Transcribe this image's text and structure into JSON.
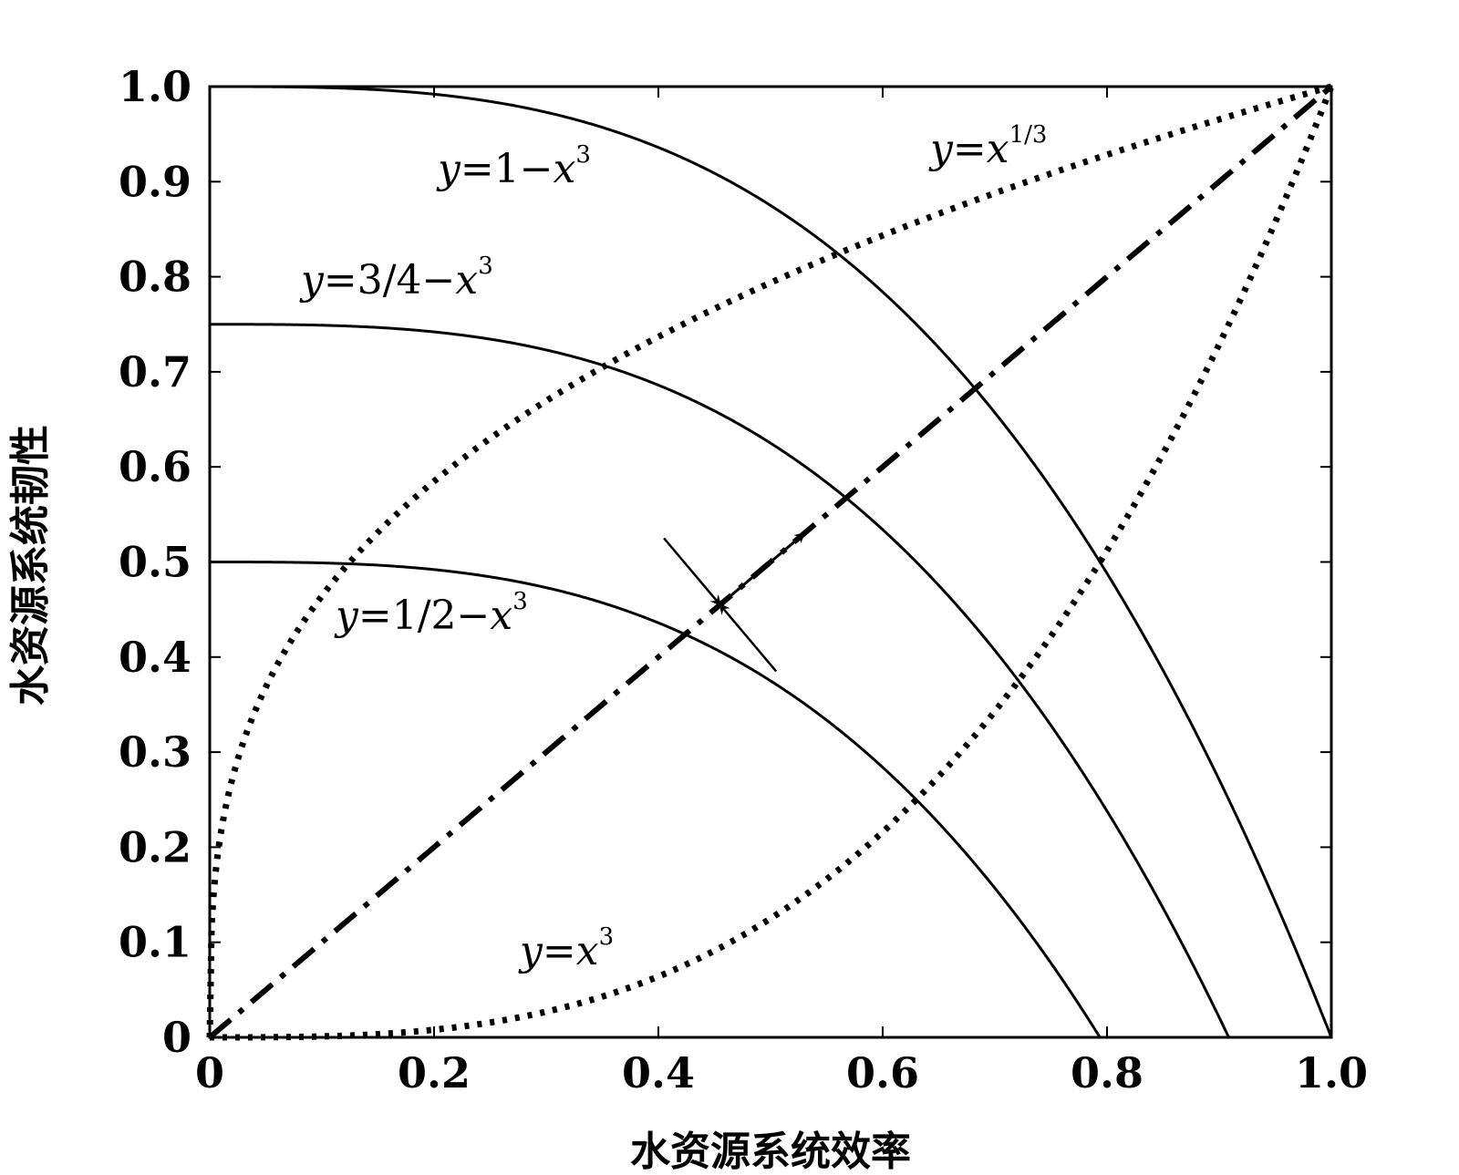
{
  "chart_data": {
    "type": "line",
    "xlabel": "水资源系统效率",
    "ylabel": "水资源系统韧性",
    "xlim": [
      0,
      1.0
    ],
    "ylim": [
      0,
      1.0
    ],
    "x_ticks": [
      "0",
      "0.2",
      "0.4",
      "0.6",
      "0.8",
      "1.0"
    ],
    "y_ticks": [
      "0",
      "0.1",
      "0.2",
      "0.3",
      "0.4",
      "0.5",
      "0.6",
      "0.7",
      "0.8",
      "0.9",
      "1.0"
    ],
    "grid": false,
    "series": [
      {
        "name": "y=1−x³",
        "formula": "1-x^3",
        "style": "solid",
        "color": "#000000",
        "label": {
          "prefix": "y",
          "middle": "=1−",
          "var": "x",
          "sup": "3"
        }
      },
      {
        "name": "y=3/4−x³",
        "formula": "3/4-x^3",
        "style": "solid",
        "color": "#000000",
        "label": {
          "prefix": "y",
          "middle": "=3/4−",
          "var": "x",
          "sup": "3"
        }
      },
      {
        "name": "y=1/2−x³",
        "formula": "1/2-x^3",
        "style": "solid",
        "color": "#000000",
        "label": {
          "prefix": "y",
          "middle": "=1/2−",
          "var": "x",
          "sup": "3"
        }
      },
      {
        "name": "y=x^1/3",
        "formula": "x^(1/3)",
        "style": "dotted",
        "color": "#000000",
        "label": {
          "prefix": "y",
          "middle": "=",
          "var": "x",
          "sup": "1/3"
        }
      },
      {
        "name": "y=x³",
        "formula": "x^3",
        "style": "dotted",
        "color": "#000000",
        "label": {
          "prefix": "y",
          "middle": "=",
          "var": "x",
          "sup": "3"
        }
      },
      {
        "formula": "x",
        "style": "dash-dot",
        "color": "#000000"
      }
    ],
    "annotations": {
      "intersection_point": [
        0.455,
        0.455
      ],
      "arrow_along_diagonal_to": [
        0.53,
        0.53
      ],
      "perpendicular_segment": [
        [
          0.405,
          0.525
        ],
        [
          0.505,
          0.385
        ]
      ]
    }
  }
}
